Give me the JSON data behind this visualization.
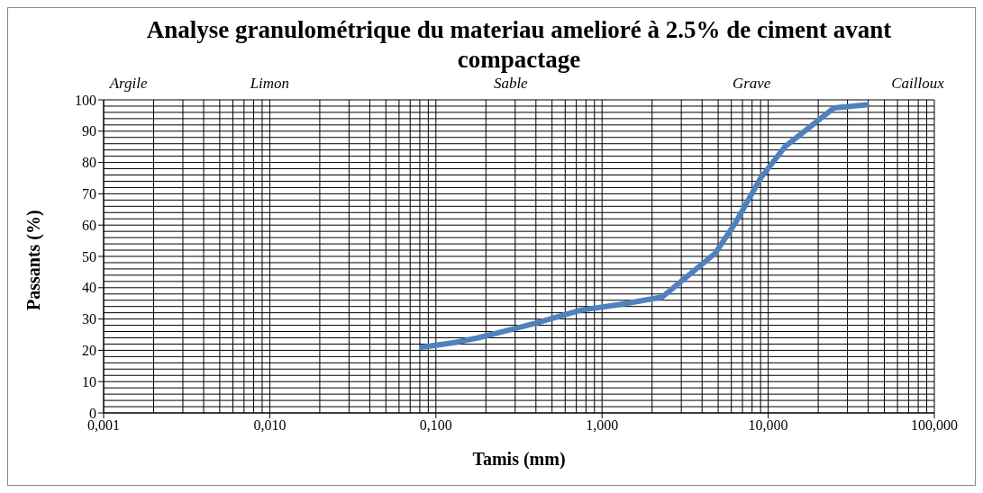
{
  "chart_data": {
    "type": "line",
    "title": "Analyse granulométrique du materiau amelioré à 2.5% de ciment avant compactage",
    "xlabel": "Tamis (mm)",
    "ylabel": "Passants (%)",
    "annotations": [
      "Argile",
      "Limon",
      "Sable",
      "Grave",
      "Cailloux"
    ],
    "log": "x",
    "grid": true,
    "marker": "none",
    "line_style": "solid",
    "xlim": [
      0.001,
      100
    ],
    "xticks": [
      {
        "value": 0.001,
        "label": "0,001"
      },
      {
        "value": 0.01,
        "label": "0,010"
      },
      {
        "value": 0.1,
        "label": "0,100"
      },
      {
        "value": 1,
        "label": "1,000"
      },
      {
        "value": 10,
        "label": "10,000"
      },
      {
        "value": 100,
        "label": "100,000"
      }
    ],
    "ylim": [
      0,
      100
    ],
    "yticks": [
      0,
      10,
      20,
      30,
      40,
      50,
      60,
      70,
      80,
      90,
      100
    ],
    "series": [
      {
        "color": "#4f81bd",
        "x": [
          0.082,
          0.13,
          0.18,
          0.3,
          0.4,
          0.74,
          1.3,
          2.3,
          4.8,
          6.4,
          9,
          12.6,
          24.8,
          39
        ],
        "values": [
          21,
          22.5,
          24,
          27,
          28.7,
          32.8,
          34.7,
          37,
          51,
          61,
          75,
          85,
          97.4,
          98.4
        ]
      }
    ]
  }
}
